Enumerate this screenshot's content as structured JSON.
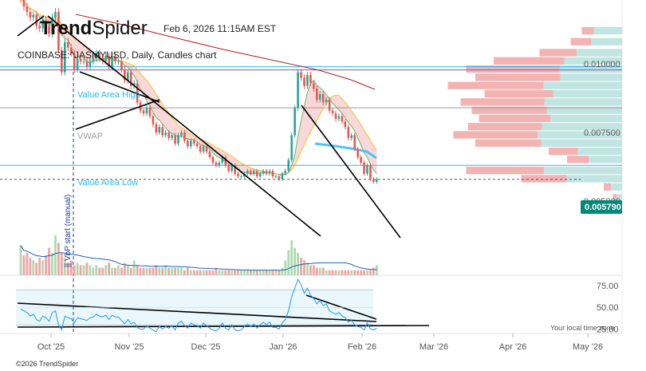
{
  "header": {
    "logo_bold": "Trend",
    "logo_light": "Spider",
    "timestamp": "Feb 6, 2026 11:15AM EST",
    "symbol_line": "COINBASE:^JASMYUSD, Daily, Candles chart"
  },
  "footer": {
    "copyright": "©2026 TrendSpider",
    "timezone_note": "Your local time zone"
  },
  "colors": {
    "up": "#26a69a",
    "down": "#ef5350",
    "trendline": "#000000",
    "value_area_line": "#29b6f6",
    "vwap_line": "#9e9e9e",
    "vah_line": "#7e57c2",
    "ma_long": "#b71c1c",
    "ma_mid": "#fbc02d",
    "ma_fast": "#66bb6a",
    "rsi_line": "#2196f3",
    "price_badge": "#00897b",
    "volume_profile_up": "#b2dfdb",
    "volume_profile_down": "#ef9a9a"
  },
  "chart_data": [
    {
      "type": "candlestick",
      "title": "COINBASE:^JASMYUSD, Daily, Candles chart",
      "x_labels": [
        "Oct '25",
        "Nov '25",
        "Dec '25",
        "Jan '26",
        "Feb '26",
        "Mar '26",
        "Apr '26",
        "May '26"
      ],
      "y_ticks": [
        0.01,
        0.0075,
        0.005
      ],
      "y_tick_labels": [
        "0.010000",
        "0.007500",
        "0.005000"
      ],
      "ylim": [
        0.0036,
        0.0119
      ],
      "last_price": 0.00579,
      "last_price_label": "0.005790",
      "levels": [
        {
          "name": "Value Area High",
          "value": 0.0099
        },
        {
          "name": "VWAP",
          "value": 0.0084
        },
        {
          "name": "Value Area Low",
          "value": 0.0063
        }
      ],
      "annotations": [
        "Value Area High",
        "VWAP",
        "Value Area Low",
        "|| VbP start (manual)"
      ],
      "closes": [
        0.0124,
        0.0121,
        0.0119,
        0.0117,
        0.0118,
        0.0114,
        0.0113,
        0.0116,
        0.0114,
        0.0111,
        0.0117,
        0.0119,
        0.0105,
        0.0097,
        0.0108,
        0.0106,
        0.0104,
        0.0098,
        0.0102,
        0.0101,
        0.0101,
        0.0099,
        0.0101,
        0.0102,
        0.0104,
        0.0102,
        0.0101,
        0.0103,
        0.0099,
        0.0103,
        0.0101,
        0.0101,
        0.0098,
        0.0094,
        0.0097,
        0.0092,
        0.0093,
        0.0086,
        0.0083,
        0.0082,
        0.0084,
        0.0081,
        0.0078,
        0.0075,
        0.0077,
        0.0074,
        0.0075,
        0.0073,
        0.0074,
        0.0071,
        0.0074,
        0.0075,
        0.0072,
        0.007,
        0.0072,
        0.0071,
        0.007,
        0.0068,
        0.007,
        0.0068,
        0.0066,
        0.0064,
        0.0063,
        0.0064,
        0.0066,
        0.0063,
        0.0061,
        0.0063,
        0.006,
        0.0059,
        0.0059,
        0.006,
        0.0061,
        0.006,
        0.0061,
        0.0059,
        0.006,
        0.0061,
        0.006,
        0.0061,
        0.0059,
        0.0059,
        0.0058,
        0.006,
        0.0061,
        0.0065,
        0.0074,
        0.0084,
        0.0097,
        0.0095,
        0.0092,
        0.0096,
        0.0093,
        0.0091,
        0.0087,
        0.0089,
        0.0086,
        0.0087,
        0.0083,
        0.0082,
        0.008,
        0.0081,
        0.0079,
        0.0077,
        0.0073,
        0.0074,
        0.0069,
        0.0066,
        0.0064,
        0.006,
        0.0063,
        0.0058,
        0.0057,
        0.0058
      ],
      "volumes": [
        1.2,
        0.8,
        0.9,
        0.7,
        0.6,
        0.5,
        0.7,
        0.6,
        0.8,
        1.1,
        0.9,
        1.6,
        1.3,
        0.9,
        0.7,
        0.5,
        0.6,
        0.4,
        0.5,
        0.4,
        0.4,
        0.5,
        0.4,
        0.3,
        0.4,
        0.3,
        0.3,
        0.4,
        0.5,
        0.3,
        0.3,
        0.4,
        0.3,
        0.5,
        0.4,
        0.3,
        0.6,
        0.4,
        0.3,
        0.3,
        0.3,
        0.3,
        0.3,
        0.4,
        0.3,
        0.3,
        0.4,
        0.3,
        0.3,
        0.3,
        0.3,
        0.3,
        0.2,
        0.3,
        0.2,
        0.2,
        0.2,
        0.2,
        0.2,
        0.2,
        0.2,
        0.2,
        0.3,
        0.2,
        0.2,
        0.2,
        0.2,
        0.2,
        0.2,
        0.2,
        0.2,
        0.2,
        0.2,
        0.2,
        0.2,
        0.2,
        0.2,
        0.2,
        0.2,
        0.2,
        0.2,
        0.2,
        0.2,
        0.3,
        0.6,
        1.0,
        1.4,
        1.1,
        0.9,
        0.7,
        0.6,
        0.5,
        0.4,
        0.4,
        0.3,
        0.3,
        0.3,
        0.2,
        0.2,
        0.2,
        0.2,
        0.2,
        0.2,
        0.2,
        0.2,
        0.2,
        0.2,
        0.2,
        0.2,
        0.2,
        0.2,
        0.2,
        0.3,
        0.4
      ],
      "volume_profile": [
        {
          "price": 0.0112,
          "total": 0.22,
          "down_share": 0.7
        },
        {
          "price": 0.0108,
          "total": 0.28,
          "down_share": 0.6
        },
        {
          "price": 0.0104,
          "total": 0.45,
          "down_share": 0.55
        },
        {
          "price": 0.0101,
          "total": 0.7,
          "down_share": 0.45
        },
        {
          "price": 0.0098,
          "total": 0.85,
          "down_share": 0.4
        },
        {
          "price": 0.0095,
          "total": 0.8,
          "down_share": 0.42
        },
        {
          "price": 0.0092,
          "total": 0.95,
          "down_share": 0.45
        },
        {
          "price": 0.0089,
          "total": 0.75,
          "down_share": 0.5
        },
        {
          "price": 0.0086,
          "total": 0.88,
          "down_share": 0.48
        },
        {
          "price": 0.0083,
          "total": 0.82,
          "down_share": 0.5
        },
        {
          "price": 0.008,
          "total": 0.78,
          "down_share": 0.5
        },
        {
          "price": 0.0077,
          "total": 0.84,
          "down_share": 0.52
        },
        {
          "price": 0.0074,
          "total": 0.92,
          "down_share": 0.5
        },
        {
          "price": 0.0071,
          "total": 0.8,
          "down_share": 0.55
        },
        {
          "price": 0.0068,
          "total": 0.4,
          "down_share": 0.6
        },
        {
          "price": 0.0065,
          "total": 0.3,
          "down_share": 0.6
        },
        {
          "price": 0.0061,
          "total": 0.85,
          "down_share": 0.5
        },
        {
          "price": 0.0058,
          "total": 0.55,
          "down_share": 0.55
        },
        {
          "price": 0.0055,
          "total": 0.1,
          "down_share": 0.6
        },
        {
          "price": 0.0051,
          "total": 0.05,
          "down_share": 0.6
        }
      ]
    },
    {
      "type": "line",
      "panel": "RSI",
      "y_ticks": [
        75,
        50,
        25
      ],
      "y_tick_labels": [
        "75.00",
        "50.00",
        "25.00"
      ],
      "ylim": [
        20,
        84
      ],
      "values": [
        48,
        46,
        44,
        40,
        42,
        36,
        34,
        40,
        38,
        34,
        44,
        46,
        30,
        24,
        40,
        38,
        37,
        32,
        38,
        37,
        36,
        35,
        38,
        39,
        42,
        40,
        39,
        41,
        36,
        41,
        39,
        39,
        35,
        31,
        36,
        31,
        33,
        27,
        25,
        25,
        29,
        26,
        24,
        22,
        28,
        25,
        28,
        26,
        29,
        24,
        32,
        34,
        29,
        26,
        32,
        30,
        29,
        26,
        32,
        29,
        26,
        24,
        23,
        26,
        32,
        26,
        24,
        30,
        24,
        23,
        24,
        28,
        31,
        28,
        31,
        26,
        30,
        33,
        30,
        33,
        27,
        27,
        25,
        32,
        36,
        46,
        62,
        72,
        82,
        76,
        66,
        72,
        64,
        60,
        54,
        58,
        52,
        54,
        46,
        44,
        42,
        44,
        40,
        38,
        33,
        35,
        30,
        28,
        27,
        24,
        32,
        25,
        24,
        26
      ]
    }
  ]
}
